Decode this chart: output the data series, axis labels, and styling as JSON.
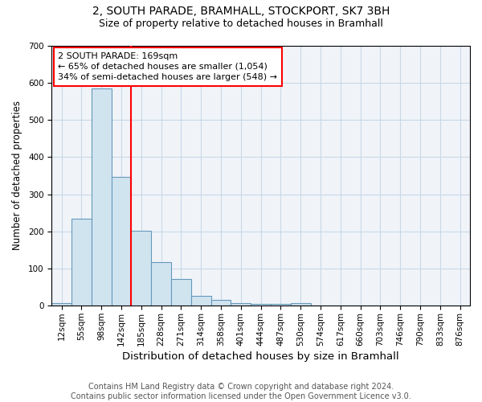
{
  "title1": "2, SOUTH PARADE, BRAMHALL, STOCKPORT, SK7 3BH",
  "title2": "Size of property relative to detached houses in Bramhall",
  "xlabel": "Distribution of detached houses by size in Bramhall",
  "ylabel": "Number of detached properties",
  "bar_color": "#d0e4f0",
  "bar_edge_color": "#6699bb",
  "categories": [
    "12sqm",
    "55sqm",
    "98sqm",
    "142sqm",
    "185sqm",
    "228sqm",
    "271sqm",
    "314sqm",
    "358sqm",
    "401sqm",
    "444sqm",
    "487sqm",
    "530sqm",
    "574sqm",
    "617sqm",
    "660sqm",
    "703sqm",
    "746sqm",
    "790sqm",
    "833sqm",
    "876sqm"
  ],
  "bar_heights": [
    8,
    235,
    585,
    347,
    202,
    118,
    72,
    27,
    15,
    8,
    5,
    5,
    8,
    0,
    0,
    0,
    0,
    0,
    0,
    0,
    0
  ],
  "annotation_text": "2 SOUTH PARADE: 169sqm\n← 65% of detached houses are smaller (1,054)\n34% of semi-detached houses are larger (548) →",
  "annotation_box_color": "white",
  "annotation_box_edge_color": "red",
  "red_line_color": "red",
  "ylim": [
    0,
    700
  ],
  "yticks": [
    0,
    100,
    200,
    300,
    400,
    500,
    600,
    700
  ],
  "footnote": "Contains HM Land Registry data © Crown copyright and database right 2024.\nContains public sector information licensed under the Open Government Licence v3.0.",
  "grid_color": "#c8d8e8",
  "background_color": "#f0f4f8",
  "title1_fontsize": 10,
  "title2_fontsize": 9,
  "xlabel_fontsize": 9.5,
  "ylabel_fontsize": 8.5,
  "tick_fontsize": 7.5,
  "annotation_fontsize": 8,
  "footnote_fontsize": 7
}
